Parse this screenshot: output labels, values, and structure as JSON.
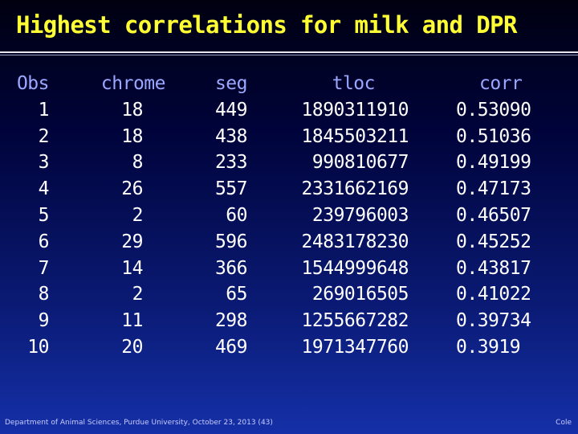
{
  "title": "Highest correlations for milk and DPR",
  "table": {
    "headers": {
      "obs": "Obs",
      "chrome": "chrome",
      "seg": "seg",
      "tloc": "tloc",
      "corr": "corr"
    },
    "rows": [
      {
        "obs": "1",
        "chrome": "18",
        "seg": "449",
        "tloc": "1890311910",
        "corr": "0.53090"
      },
      {
        "obs": "2",
        "chrome": "18",
        "seg": "438",
        "tloc": "1845503211",
        "corr": "0.51036"
      },
      {
        "obs": "3",
        "chrome": "8",
        "seg": "233",
        "tloc": "990810677",
        "corr": "0.49199"
      },
      {
        "obs": "4",
        "chrome": "26",
        "seg": "557",
        "tloc": "2331662169",
        "corr": "0.47173"
      },
      {
        "obs": "5",
        "chrome": "2",
        "seg": "60",
        "tloc": "239796003",
        "corr": "0.46507"
      },
      {
        "obs": "6",
        "chrome": "29",
        "seg": "596",
        "tloc": "2483178230",
        "corr": "0.45252"
      },
      {
        "obs": "7",
        "chrome": "14",
        "seg": "366",
        "tloc": "1544999648",
        "corr": "0.43817"
      },
      {
        "obs": "8",
        "chrome": "2",
        "seg": "65",
        "tloc": "269016505",
        "corr": "0.41022"
      },
      {
        "obs": "9",
        "chrome": "11",
        "seg": "298",
        "tloc": "1255667282",
        "corr": "0.39734"
      },
      {
        "obs": "10",
        "chrome": "20",
        "seg": "469",
        "tloc": "1971347760",
        "corr": "0.3919"
      }
    ]
  },
  "footer": {
    "left": "Department of Animal Sciences, Purdue University, October 23, 2013 (43)",
    "right": "Cole"
  }
}
